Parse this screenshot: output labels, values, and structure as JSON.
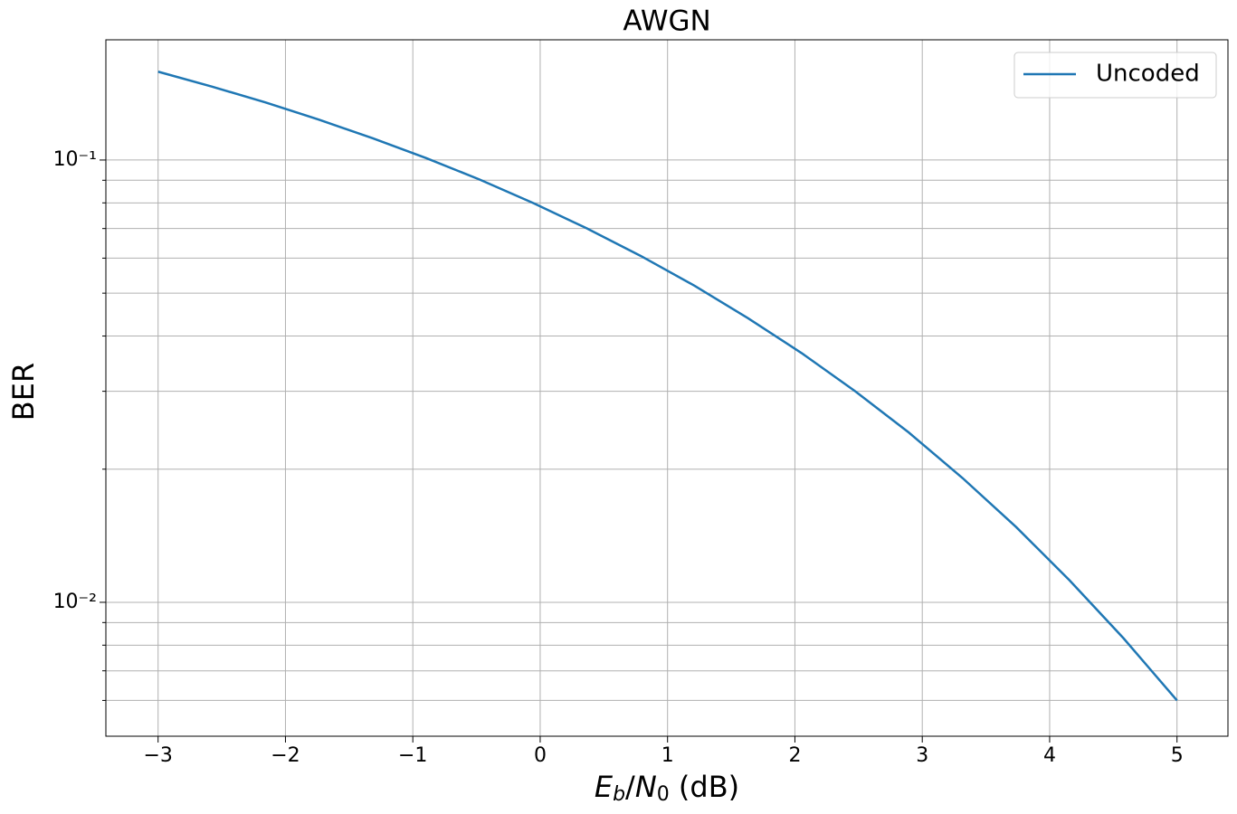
{
  "chart_data": {
    "type": "line",
    "title": "AWGN",
    "xlabel": [
      "E",
      "b",
      "/",
      "N",
      "0",
      " (dB)"
    ],
    "ylabel": "BER",
    "x": [
      -3,
      -2.5789,
      -2.1579,
      -1.7368,
      -1.3158,
      -0.8947,
      -0.4737,
      -0.0526,
      0.3684,
      0.7895,
      1.2105,
      1.6316,
      2.0526,
      2.4737,
      2.8947,
      3.3158,
      3.7368,
      4.1579,
      4.5789,
      5
    ],
    "series": [
      {
        "name": "Uncoded",
        "color": "#1f77b4",
        "values": [
          0.1584,
          0.1466,
          0.135,
          0.1234,
          0.112,
          0.101,
          0.0903,
          0.0799,
          0.07,
          0.0607,
          0.052,
          0.0439,
          0.0366,
          0.03,
          0.0242,
          0.0191,
          0.0148,
          0.0112,
          0.0083,
          0.006
        ]
      }
    ],
    "xlim": [
      -3.41,
      5.4
    ],
    "xticks": [
      {
        "value": -3,
        "label": "−3"
      },
      {
        "value": -2,
        "label": "−2"
      },
      {
        "value": -1,
        "label": "−1"
      },
      0,
      1,
      2,
      3,
      4,
      5
    ],
    "ylim": [
      0.00498,
      0.187
    ],
    "yscale": "log",
    "yticks": [
      {
        "value": 0.01,
        "label": "10⁻²"
      },
      {
        "value": 0.1,
        "label": "10⁻¹"
      }
    ],
    "yminorticks": [
      0.006,
      0.007,
      0.008,
      0.009,
      0.02,
      0.03,
      0.04,
      0.05,
      0.06,
      0.07,
      0.08,
      0.09
    ],
    "grid": true,
    "legend": "upper right"
  }
}
